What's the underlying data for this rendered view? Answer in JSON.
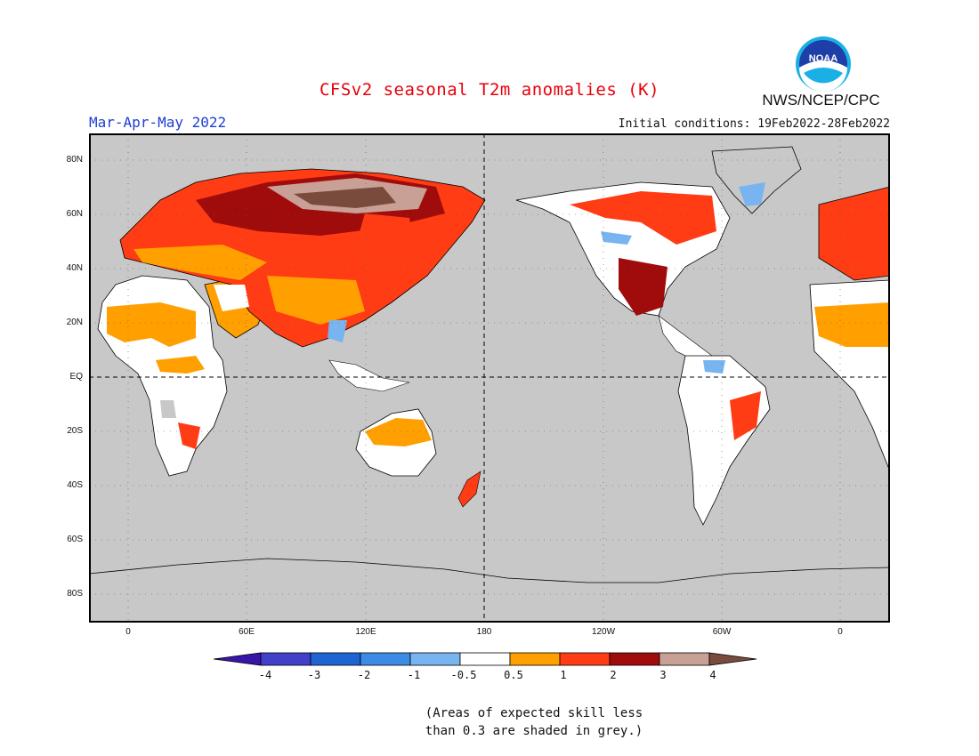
{
  "title": "CFSv2 seasonal T2m anomalies (K)",
  "season": "Mar-Apr-May 2022",
  "initial_conditions": "Initial conditions: 19Feb2022-28Feb2022",
  "agency": "NWS/NCEP/CPC",
  "logo_text": "NOAA",
  "lat_labels": [
    "80N",
    "60N",
    "40N",
    "20N",
    "EQ",
    "20S",
    "40S",
    "60S",
    "80S"
  ],
  "lon_labels": [
    "0",
    "60E",
    "120E",
    "180",
    "120W",
    "60W",
    "0"
  ],
  "colorbar": {
    "labels": [
      "-4",
      "-3",
      "-2",
      "-1",
      "-0.5",
      "0.5",
      "1",
      "2",
      "3",
      "4"
    ],
    "colors": [
      "#3a16a8",
      "#4040c8",
      "#1e64d2",
      "#3c8ce6",
      "#78b4f0",
      "#ffffff",
      "#ffa000",
      "#ff3c14",
      "#a00c0c",
      "#c8a096",
      "#784b3c"
    ],
    "no_skill_color": "#c8c8c8"
  },
  "note_lines": [
    "(Areas of expected skill less",
    "than 0.3 are shaded in grey.)"
  ]
}
